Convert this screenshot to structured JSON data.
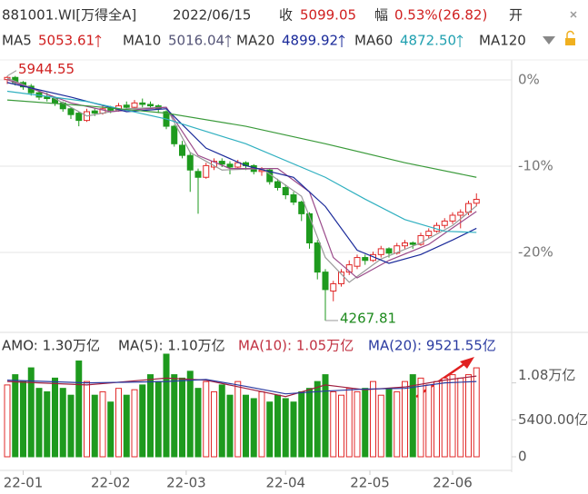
{
  "header": {
    "symbol": "881001.WI[万得全A]",
    "date": "2022/06/15",
    "close_label": "收",
    "close": "5099.05",
    "change_label": "幅",
    "change": "0.53%(26.82)",
    "open_label": "开",
    "indicators": [
      {
        "name": "MA5",
        "value": "5053.61",
        "color": "#d02020"
      },
      {
        "name": "MA10",
        "value": "5016.04",
        "color": "#555577"
      },
      {
        "name": "MA20",
        "value": "4899.92",
        "color": "#1a2a9a"
      },
      {
        "name": "MA60",
        "value": "4872.50",
        "color": "#20a0b0"
      },
      {
        "name": "MA120"
      }
    ]
  },
  "volume_header": [
    "AMO: 1.30万亿",
    "MA(5): 1.10万亿",
    "MA(10): 1.05万亿",
    "MA(20): 9521.55亿"
  ],
  "chart_data": {
    "type": "candlestick",
    "up_color": "#e02828",
    "down_color": "#1e9a1e",
    "candles": [
      [
        5920,
        5944.55,
        5890,
        5935
      ],
      [
        5935,
        5945,
        5880,
        5900
      ],
      [
        5900,
        5910,
        5850,
        5870
      ],
      [
        5875,
        5890,
        5810,
        5830
      ],
      [
        5830,
        5850,
        5780,
        5800
      ],
      [
        5800,
        5830,
        5770,
        5790
      ],
      [
        5790,
        5800,
        5740,
        5760
      ],
      [
        5760,
        5770,
        5700,
        5720
      ],
      [
        5720,
        5730,
        5650,
        5680
      ],
      [
        5690,
        5700,
        5600,
        5640
      ],
      [
        5640,
        5720,
        5630,
        5700
      ],
      [
        5705,
        5725,
        5670,
        5690
      ],
      [
        5690,
        5740,
        5680,
        5720
      ],
      [
        5725,
        5740,
        5690,
        5710
      ],
      [
        5710,
        5760,
        5700,
        5740
      ],
      [
        5745,
        5770,
        5715,
        5730
      ],
      [
        5730,
        5780,
        5720,
        5760
      ],
      [
        5760,
        5790,
        5730,
        5750
      ],
      [
        5750,
        5770,
        5720,
        5740
      ],
      [
        5740,
        5750,
        5690,
        5720
      ],
      [
        5700,
        5710,
        5580,
        5600
      ],
      [
        5600,
        5610,
        5460,
        5480
      ],
      [
        5470,
        5500,
        5380,
        5400
      ],
      [
        5400,
        5420,
        5150,
        5300
      ],
      [
        5290,
        5310,
        5000,
        5250
      ],
      [
        5250,
        5350,
        5240,
        5330
      ],
      [
        5320,
        5380,
        5300,
        5360
      ],
      [
        5360,
        5380,
        5320,
        5340
      ],
      [
        5340,
        5360,
        5270,
        5320
      ],
      [
        5320,
        5370,
        5310,
        5350
      ],
      [
        5350,
        5360,
        5300,
        5330
      ],
      [
        5330,
        5340,
        5270,
        5290
      ],
      [
        5290,
        5320,
        5260,
        5300
      ],
      [
        5300,
        5310,
        5200,
        5220
      ],
      [
        5220,
        5240,
        5160,
        5180
      ],
      [
        5180,
        5200,
        5100,
        5130
      ],
      [
        5130,
        5150,
        5060,
        5080
      ],
      [
        5080,
        5090,
        4950,
        5000
      ],
      [
        5000,
        5010,
        4760,
        4800
      ],
      [
        4800,
        4820,
        4550,
        4600
      ],
      [
        4600,
        4620,
        4267.81,
        4480
      ],
      [
        4470,
        4540,
        4400,
        4520
      ],
      [
        4520,
        4620,
        4500,
        4600
      ],
      [
        4600,
        4680,
        4580,
        4650
      ],
      [
        4640,
        4720,
        4620,
        4700
      ],
      [
        4700,
        4720,
        4650,
        4680
      ],
      [
        4680,
        4740,
        4670,
        4720
      ],
      [
        4720,
        4780,
        4700,
        4760
      ],
      [
        4760,
        4770,
        4700,
        4730
      ],
      [
        4730,
        4800,
        4720,
        4780
      ],
      [
        4780,
        4820,
        4760,
        4800
      ],
      [
        4800,
        4810,
        4760,
        4790
      ],
      [
        4790,
        4870,
        4780,
        4850
      ],
      [
        4850,
        4900,
        4830,
        4880
      ],
      [
        4880,
        4940,
        4870,
        4920
      ],
      [
        4920,
        4970,
        4900,
        4950
      ],
      [
        4950,
        5010,
        4930,
        4990
      ],
      [
        4990,
        5030,
        4900,
        5010
      ],
      [
        5010,
        5090,
        4990,
        5070
      ],
      [
        5072.23,
        5140,
        5050,
        5099.05
      ]
    ],
    "ylim": [
      4224,
      6030
    ],
    "yticks": [
      {
        "value": 5918,
        "label": "0%"
      },
      {
        "value": 5326.2,
        "label": "-10%"
      },
      {
        "value": 4734.4,
        "label": "-20%"
      }
    ],
    "ma_lines": [
      {
        "color": "#999999",
        "x": [
          0,
          5,
          10,
          15,
          20,
          23,
          27,
          32,
          37,
          40,
          43,
          47,
          52,
          56,
          59
        ],
        "values": [
          5930,
          5820,
          5670,
          5720,
          5730,
          5420,
          5300,
          5310,
          5120,
          4700,
          4530,
          4690,
          4800,
          4920,
          5054
        ]
      },
      {
        "color": "#9a4a8a",
        "x": [
          0,
          8,
          13,
          20,
          24,
          28,
          34,
          38,
          41,
          44,
          48,
          53,
          59
        ],
        "values": [
          5920,
          5760,
          5700,
          5730,
          5400,
          5310,
          5310,
          5150,
          4700,
          4560,
          4680,
          4790,
          5016
        ]
      },
      {
        "color": "#1a2a9a",
        "x": [
          0,
          8,
          15,
          20,
          25,
          30,
          36,
          40,
          44,
          48,
          52,
          56,
          59
        ],
        "values": [
          5900,
          5800,
          5700,
          5720,
          5450,
          5330,
          5250,
          5050,
          4750,
          4660,
          4720,
          4820,
          4900
        ]
      },
      {
        "color": "#30b0c0",
        "x": [
          0,
          10,
          20,
          30,
          40,
          45,
          50,
          55,
          59
        ],
        "values": [
          5840,
          5770,
          5650,
          5480,
          5250,
          5100,
          4960,
          4880,
          4872
        ]
      },
      {
        "color": "#3a9a3a",
        "x": [
          0,
          10,
          20,
          30,
          40,
          50,
          59
        ],
        "values": [
          5780,
          5740,
          5690,
          5600,
          5480,
          5350,
          5250
        ]
      }
    ],
    "volumes": [
      10500,
      12000,
      11000,
      13000,
      10000,
      9500,
      11500,
      10000,
      9000,
      14000,
      11000,
      9000,
      9500,
      8000,
      10000,
      9000,
      9800,
      10500,
      12000,
      11000,
      15000,
      12000,
      11500,
      12500,
      10000,
      11000,
      9500,
      10500,
      9000,
      11000,
      9000,
      8500,
      9500,
      8000,
      9000,
      8500,
      8000,
      9500,
      10000,
      11000,
      12000,
      9500,
      9000,
      10000,
      9500,
      10000,
      11000,
      9000,
      10000,
      9500,
      11000,
      12000,
      11500,
      10500,
      11000,
      11500,
      12000,
      11500,
      12000,
      13000
    ],
    "vlim": [
      0,
      15000
    ],
    "vticks": [
      {
        "value": 0,
        "label": "0"
      },
      {
        "value": 5400,
        "label": "5400.00亿"
      },
      {
        "value": 10800,
        "label": "1.08万亿"
      }
    ],
    "vol_ma_lines": [
      {
        "color": "#a02040",
        "x": [
          0,
          10,
          20,
          25,
          30,
          35,
          40,
          45,
          50,
          55,
          59
        ],
        "values": [
          11000,
          10500,
          11500,
          11200,
          10000,
          8800,
          10500,
          9800,
          10200,
          11200,
          11800
        ]
      },
      {
        "color": "#2a3aa0",
        "x": [
          0,
          10,
          20,
          25,
          30,
          35,
          40,
          45,
          50,
          55,
          59
        ],
        "values": [
          11200,
          10800,
          11000,
          11300,
          10300,
          9200,
          9600,
          9900,
          10000,
          10800,
          11000
        ]
      }
    ],
    "xticks": [
      {
        "value": 2,
        "label": "22-01"
      },
      {
        "value": 13,
        "label": "22-02"
      },
      {
        "value": 22.5,
        "label": "22-03"
      },
      {
        "value": 35,
        "label": "22-04"
      },
      {
        "value": 45.6,
        "label": "22-05"
      },
      {
        "value": 56,
        "label": "22-06"
      }
    ]
  }
}
